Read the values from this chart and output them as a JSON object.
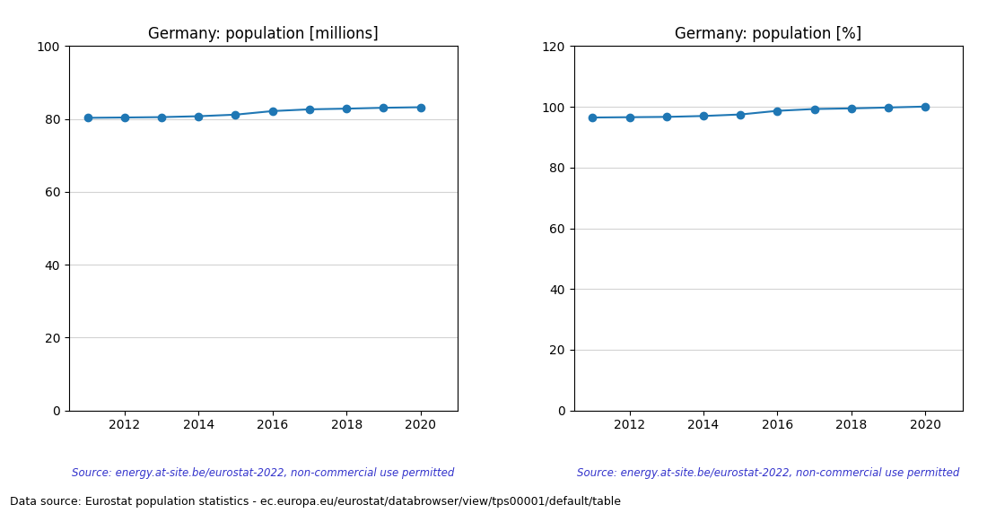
{
  "years": [
    2011,
    2012,
    2013,
    2014,
    2015,
    2016,
    2017,
    2018,
    2019,
    2020
  ],
  "population_millions": [
    80.33,
    80.42,
    80.52,
    80.77,
    81.2,
    82.18,
    82.66,
    82.85,
    83.09,
    83.24
  ],
  "population_percent": [
    96.5,
    96.6,
    96.7,
    97.0,
    97.5,
    98.7,
    99.3,
    99.5,
    99.8,
    100.1
  ],
  "title_millions": "Germany: population [millions]",
  "title_percent": "Germany: population [%]",
  "source_text": "Source: energy.at-site.be/eurostat-2022, non-commercial use permitted",
  "footer_text": "Data source: Eurostat population statistics - ec.europa.eu/eurostat/databrowser/view/tps00001/default/table",
  "line_color": "#1f77b4",
  "source_color": "#3333cc",
  "ylim_millions": [
    0,
    100
  ],
  "ylim_percent": [
    0,
    120
  ],
  "yticks_millions": [
    0,
    20,
    40,
    60,
    80,
    100
  ],
  "yticks_percent": [
    0,
    20,
    40,
    60,
    80,
    100,
    120
  ],
  "marker_size": 6,
  "line_width": 1.5
}
